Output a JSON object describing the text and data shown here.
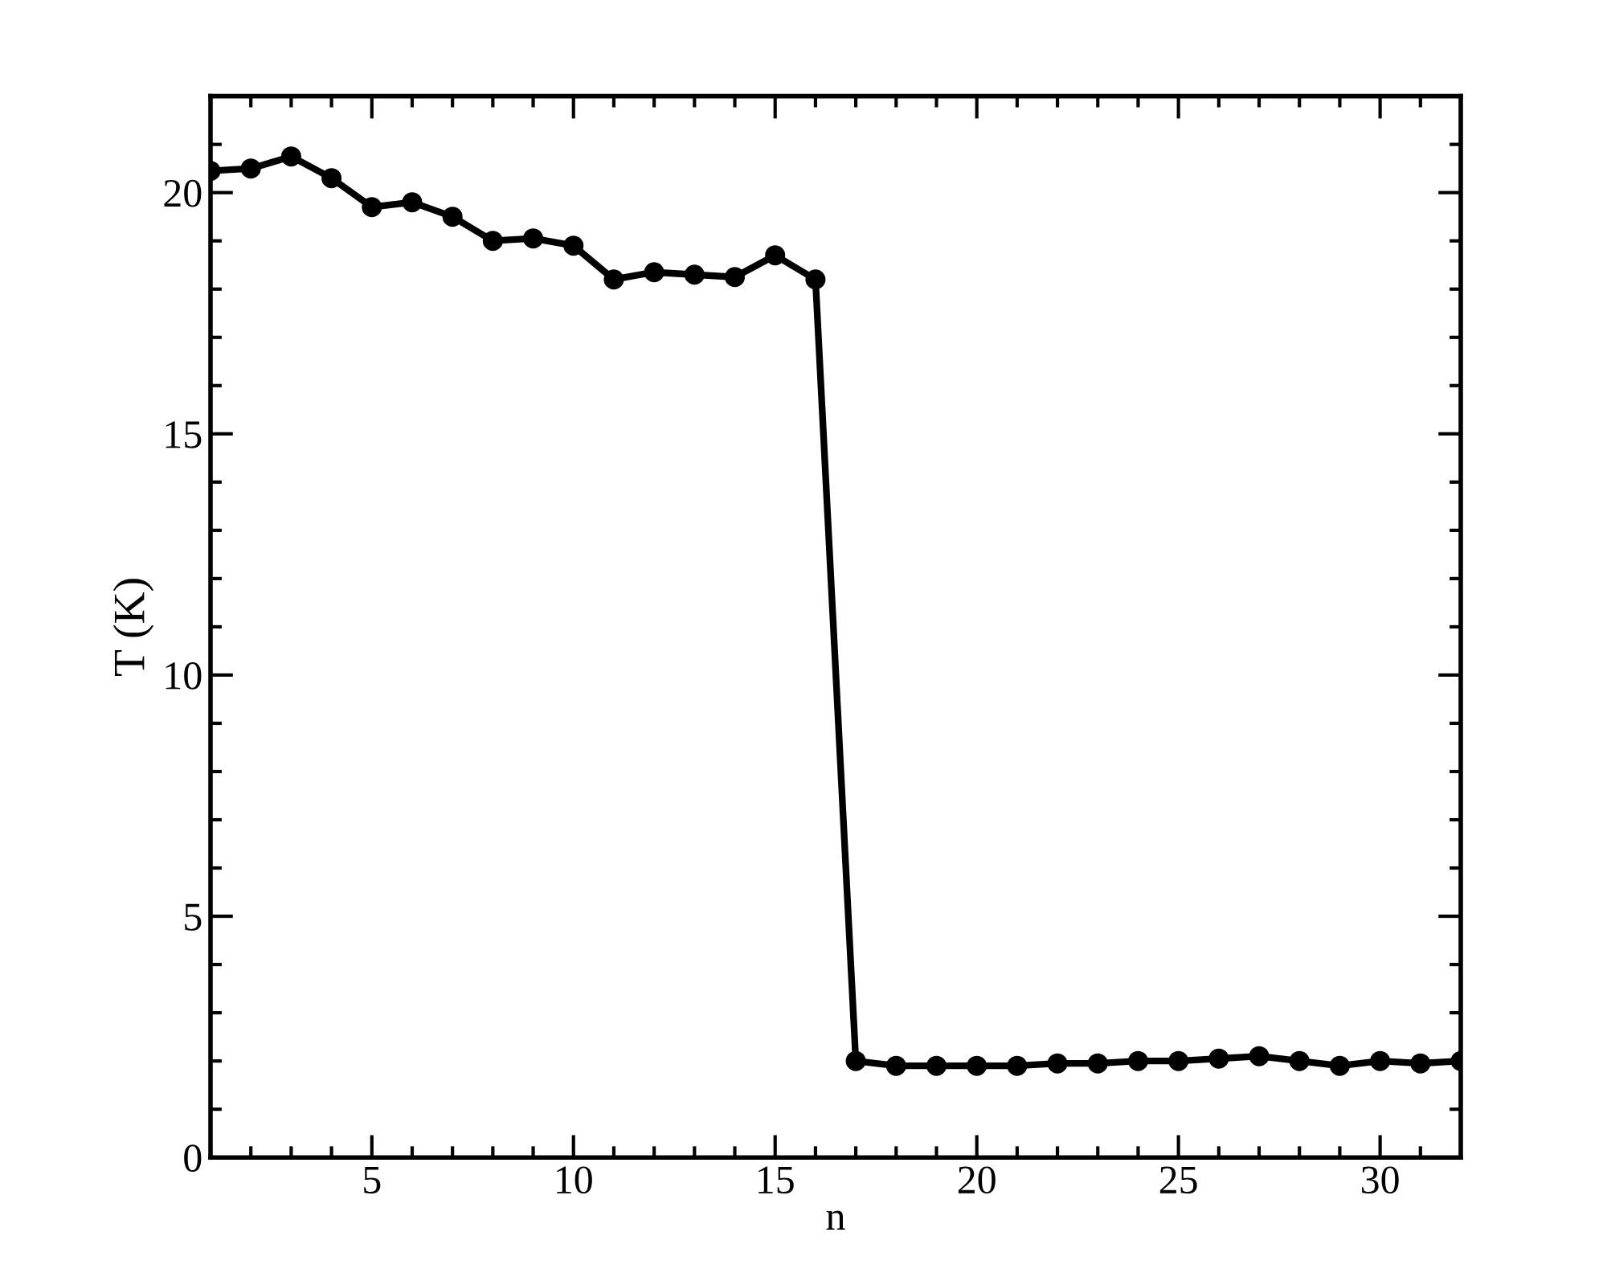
{
  "chart_data": {
    "type": "line",
    "xlabel": "n",
    "ylabel": "T (K)",
    "x": [
      1,
      2,
      3,
      4,
      5,
      6,
      7,
      8,
      9,
      10,
      11,
      12,
      13,
      14,
      15,
      16,
      17,
      18,
      19,
      20,
      21,
      22,
      23,
      24,
      25,
      26,
      27,
      28,
      29,
      30,
      31,
      32
    ],
    "series": [
      {
        "color": "#000000",
        "values": [
          20.45,
          20.5,
          20.75,
          20.3,
          19.7,
          19.8,
          19.5,
          19.0,
          19.05,
          18.9,
          18.2,
          18.35,
          18.3,
          18.25,
          18.7,
          18.2,
          2.0,
          1.9,
          1.9,
          1.9,
          1.9,
          1.95,
          1.95,
          2.0,
          2.0,
          2.05,
          2.1,
          2.0,
          1.9,
          2.0,
          1.95,
          2.0
        ]
      }
    ],
    "xlim": [
      1,
      32
    ],
    "xticks": [
      5,
      10,
      15,
      20,
      25,
      30
    ],
    "ylim": [
      0,
      22
    ],
    "yticks": [
      0,
      5,
      10,
      15,
      20
    ],
    "marker": "circle",
    "line_style": "solid",
    "grid": false,
    "legend": false
  }
}
